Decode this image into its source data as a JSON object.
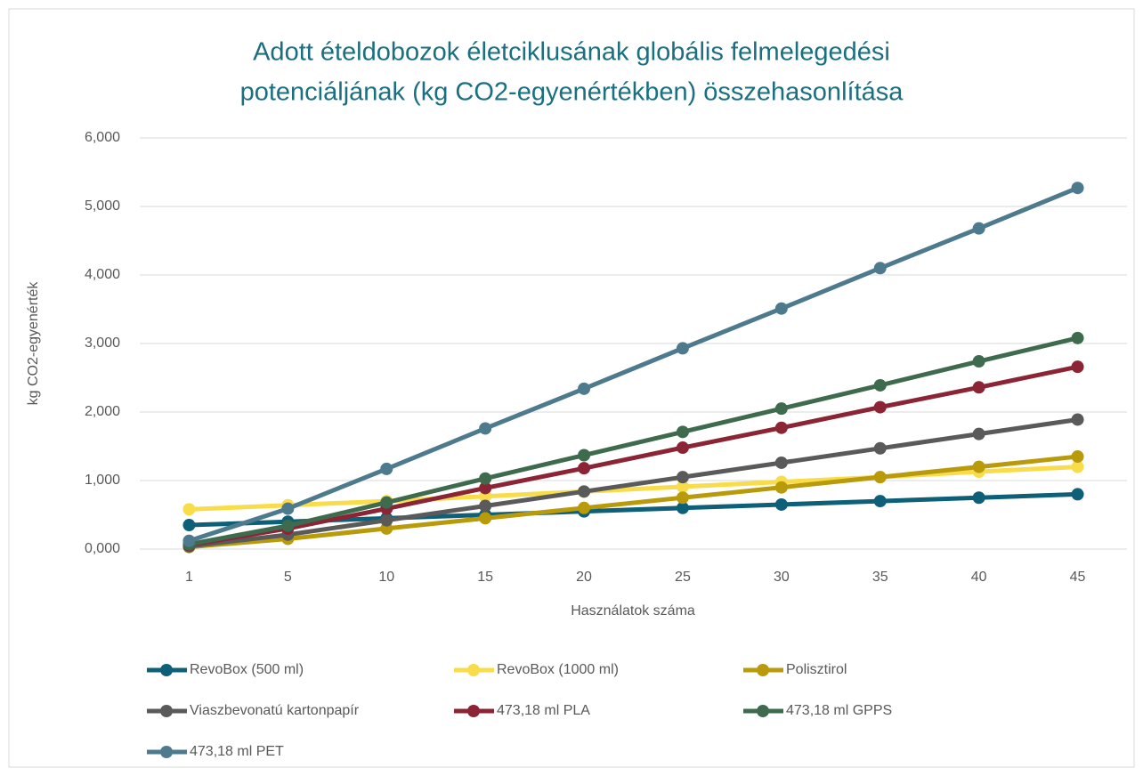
{
  "chart_data": {
    "type": "line",
    "title": [
      "Adott ételdobozok életciklusának globális felmelegedési",
      "potenciáljának (kg CO2-egyenértékben) összehasonlítása"
    ],
    "xlabel": "Használatok száma",
    "ylabel": "kg CO2-egyenérték",
    "categories": [
      "1",
      "5",
      "10",
      "15",
      "20",
      "25",
      "30",
      "35",
      "40",
      "45"
    ],
    "ylim": [
      0,
      6
    ],
    "yticks": [
      {
        "value": 0,
        "label": "0,000"
      },
      {
        "value": 1,
        "label": "1,000"
      },
      {
        "value": 2,
        "label": "2,000"
      },
      {
        "value": 3,
        "label": "3,000"
      },
      {
        "value": 4,
        "label": "4,000"
      },
      {
        "value": 5,
        "label": "5,000"
      },
      {
        "value": 6,
        "label": "6,000"
      }
    ],
    "grid": true,
    "legend": "bottom",
    "series": [
      {
        "name": "RevoBox (500 ml)",
        "color": "#0e5f78",
        "values": [
          0.35,
          0.4,
          0.45,
          0.5,
          0.55,
          0.6,
          0.65,
          0.7,
          0.75,
          0.8
        ]
      },
      {
        "name": "RevoBox (1000 ml)",
        "color": "#f9dc4a",
        "values": [
          0.58,
          0.64,
          0.7,
          0.77,
          0.84,
          0.91,
          0.98,
          1.05,
          1.13,
          1.2
        ]
      },
      {
        "name": "Polisztirol",
        "color": "#b89a0a",
        "values": [
          0.03,
          0.15,
          0.3,
          0.45,
          0.6,
          0.75,
          0.9,
          1.05,
          1.2,
          1.35
        ]
      },
      {
        "name": "Viaszbevonatú kartonpapír",
        "color": "#5a5a5a",
        "values": [
          0.04,
          0.21,
          0.42,
          0.63,
          0.84,
          1.05,
          1.26,
          1.47,
          1.68,
          1.89
        ]
      },
      {
        "name": "473,18 ml PLA",
        "color": "#8b2535",
        "values": [
          0.06,
          0.3,
          0.59,
          0.89,
          1.18,
          1.48,
          1.77,
          2.07,
          2.36,
          2.66
        ]
      },
      {
        "name": "473,18 ml GPPS",
        "color": "#3e6b4e",
        "values": [
          0.07,
          0.34,
          0.68,
          1.03,
          1.37,
          1.71,
          2.05,
          2.39,
          2.74,
          3.08
        ]
      },
      {
        "name": "473,18 ml PET",
        "color": "#4e7a8e",
        "values": [
          0.12,
          0.59,
          1.17,
          1.76,
          2.34,
          2.93,
          3.51,
          4.1,
          4.68,
          5.27
        ]
      }
    ]
  }
}
